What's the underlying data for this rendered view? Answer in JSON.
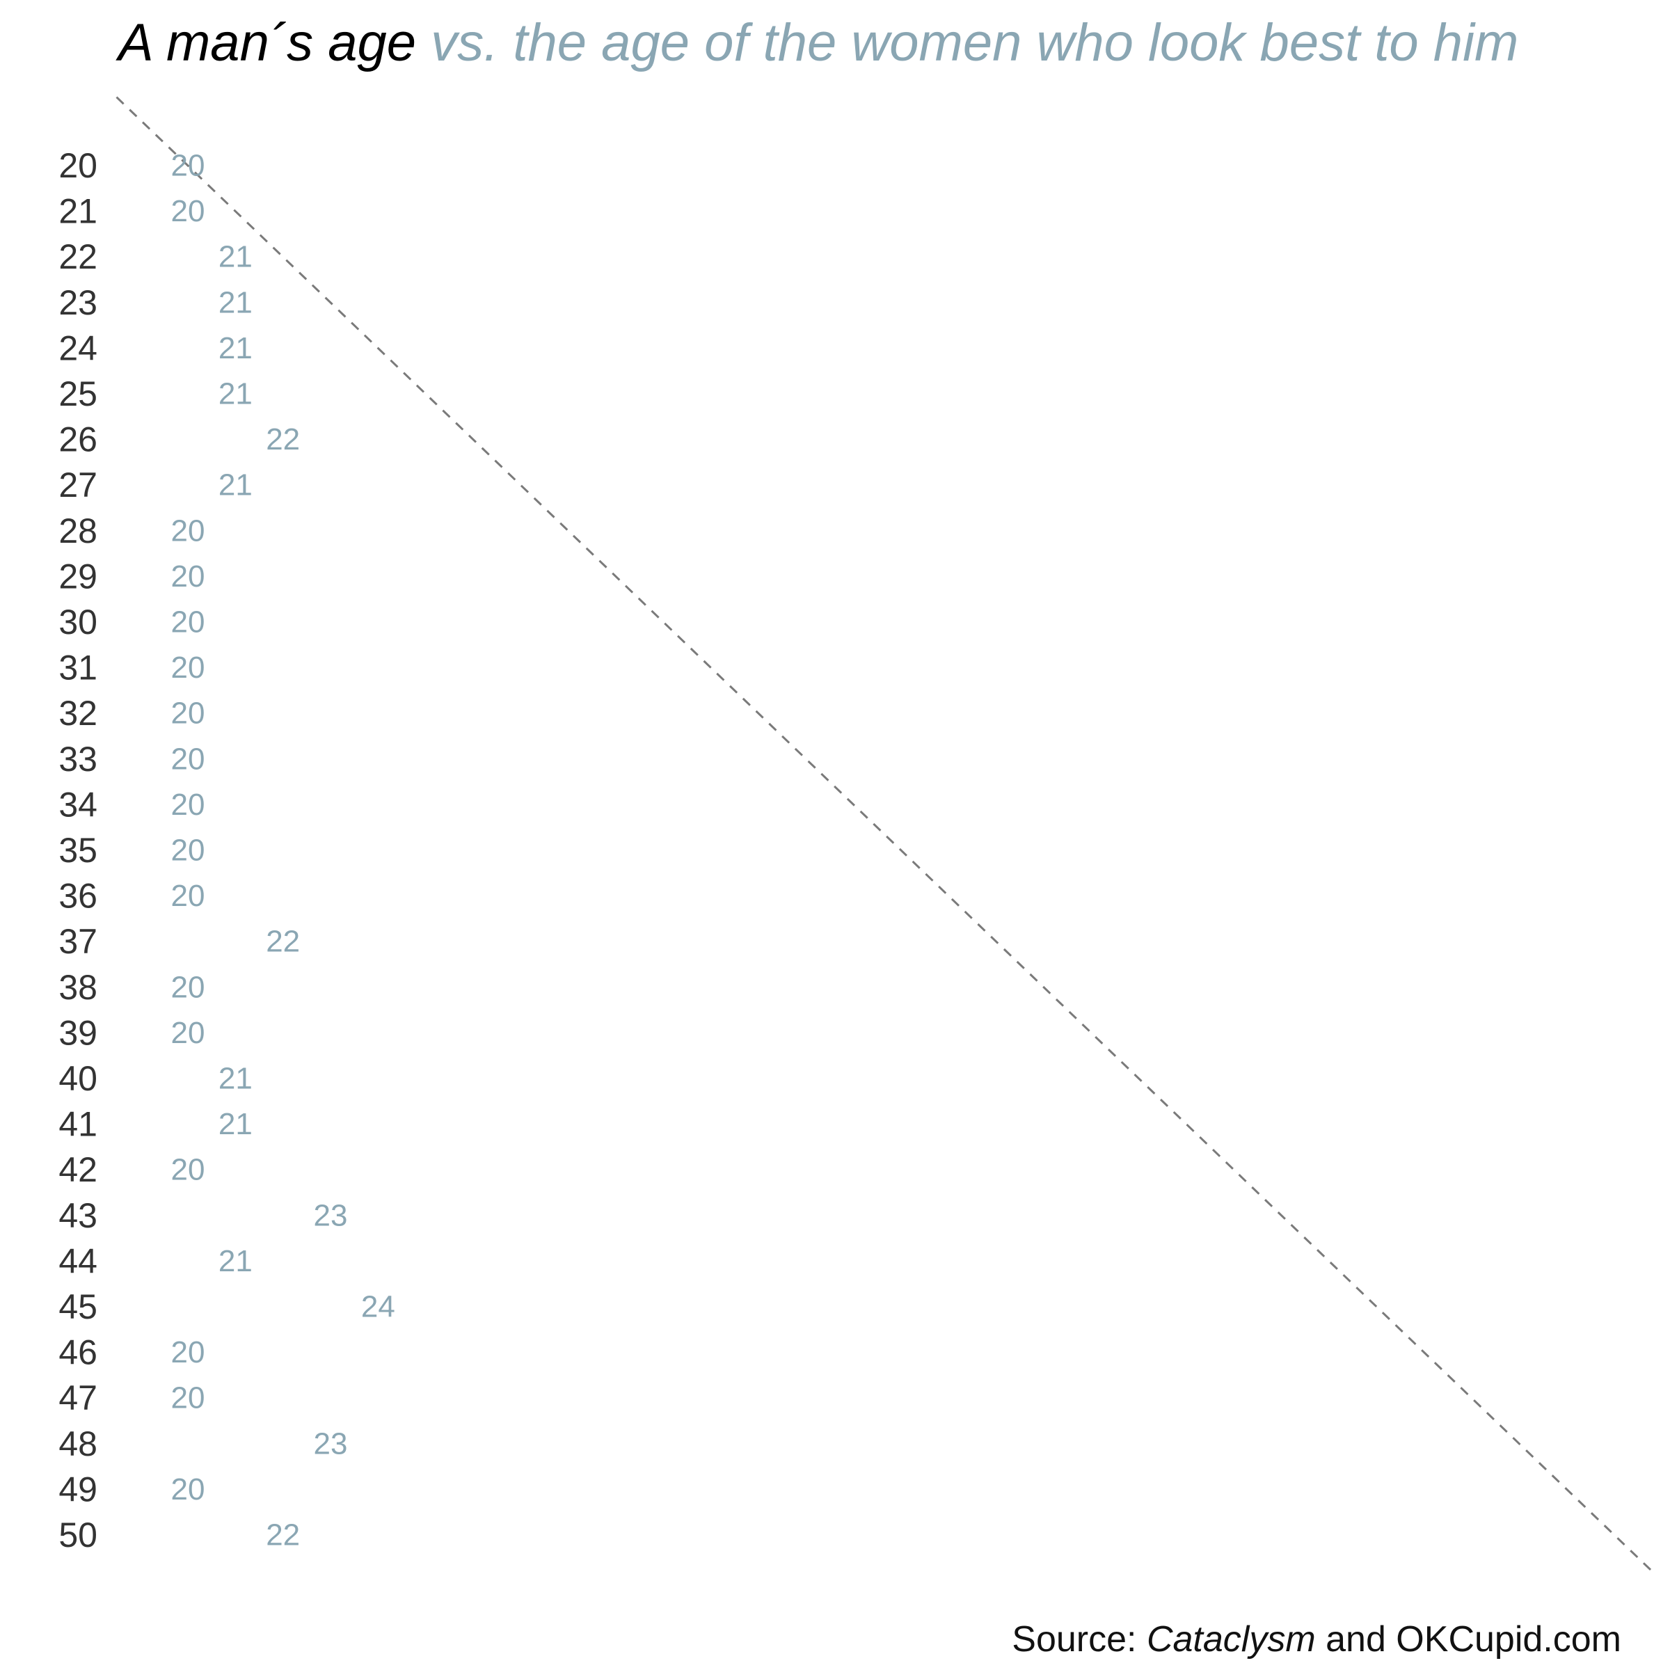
{
  "title": {
    "part1": "A man´s age",
    "part2": "vs. the age of the women who look best to him"
  },
  "source": {
    "prefix": "Source: ",
    "italic": "Cataclysm",
    "suffix": " and OKCupid.com"
  },
  "colors": {
    "man_age": "#333333",
    "preferred_age": "#8aa6b3",
    "diagonal": "#7a7a7a"
  },
  "chart_data": {
    "type": "scatter",
    "title": "A man´s age vs. the age of the women who look best to him",
    "xlabel": "",
    "ylabel": "",
    "x_name": "age of the women who look best to him",
    "y_name": "A man´s age",
    "xlim": [
      20,
      50
    ],
    "ylim": [
      20,
      50
    ],
    "grid": false,
    "reference_line": "dashed diagonal (y = x)",
    "men_ages": [
      20,
      21,
      22,
      23,
      24,
      25,
      26,
      27,
      28,
      29,
      30,
      31,
      32,
      33,
      34,
      35,
      36,
      37,
      38,
      39,
      40,
      41,
      42,
      43,
      44,
      45,
      46,
      47,
      48,
      49,
      50
    ],
    "preferred_ages": [
      20,
      20,
      21,
      21,
      21,
      21,
      22,
      21,
      20,
      20,
      20,
      20,
      20,
      20,
      20,
      20,
      20,
      22,
      20,
      20,
      21,
      21,
      20,
      23,
      21,
      24,
      20,
      20,
      23,
      20,
      22
    ]
  }
}
